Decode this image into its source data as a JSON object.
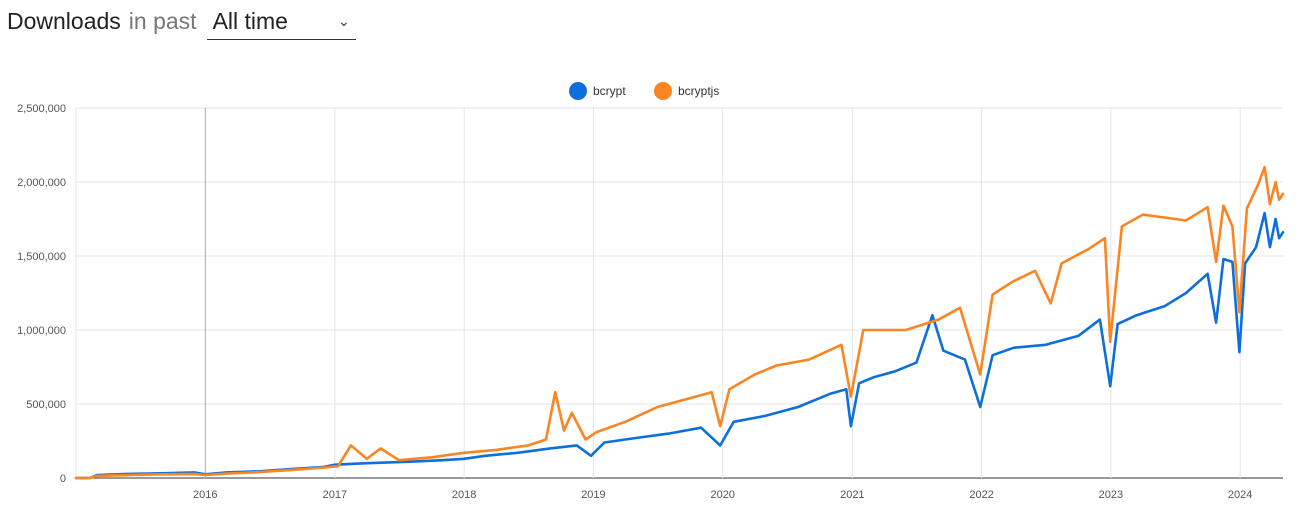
{
  "header": {
    "title": "Downloads",
    "subtitle": "in past",
    "period_selected": "All time"
  },
  "icons": {
    "period_dropdown": "chevron-down-icon"
  },
  "chart_data": {
    "type": "line",
    "title": "",
    "xlabel": "",
    "ylabel": "",
    "grid": true,
    "legend_position": "top-center",
    "x_ticks": [
      "2016",
      "2017",
      "2018",
      "2019",
      "2020",
      "2021",
      "2022",
      "2023",
      "2024"
    ],
    "y_ticks": [
      "0",
      "500,000",
      "1,000,000",
      "1,500,000",
      "2,000,000",
      "2,500,000"
    ],
    "xlim": [
      "2015-01-01",
      "2024-05-01"
    ],
    "ylim": [
      0,
      2500000
    ],
    "series": [
      {
        "name": "bcrypt",
        "color": "#0D6FDC",
        "points": [
          [
            "2015-01-01",
            0
          ],
          [
            "2015-02-10",
            0
          ],
          [
            "2015-03-01",
            20000
          ],
          [
            "2015-06-01",
            28000
          ],
          [
            "2015-09-01",
            32000
          ],
          [
            "2015-12-01",
            38000
          ],
          [
            "2016-01-01",
            25000
          ],
          [
            "2016-03-01",
            38000
          ],
          [
            "2016-06-01",
            45000
          ],
          [
            "2016-09-01",
            60000
          ],
          [
            "2016-12-01",
            75000
          ],
          [
            "2017-01-01",
            90000
          ],
          [
            "2017-04-01",
            100000
          ],
          [
            "2017-08-01",
            110000
          ],
          [
            "2017-11-01",
            120000
          ],
          [
            "2018-01-01",
            130000
          ],
          [
            "2018-03-01",
            150000
          ],
          [
            "2018-06-01",
            170000
          ],
          [
            "2018-09-01",
            200000
          ],
          [
            "2018-11-15",
            220000
          ],
          [
            "2018-12-25",
            150000
          ],
          [
            "2019-02-01",
            240000
          ],
          [
            "2019-05-01",
            270000
          ],
          [
            "2019-08-01",
            300000
          ],
          [
            "2019-11-01",
            340000
          ],
          [
            "2019-12-25",
            220000
          ],
          [
            "2020-02-01",
            380000
          ],
          [
            "2020-05-01",
            420000
          ],
          [
            "2020-08-01",
            480000
          ],
          [
            "2020-11-01",
            570000
          ],
          [
            "2020-12-15",
            600000
          ],
          [
            "2020-12-28",
            350000
          ],
          [
            "2021-01-20",
            640000
          ],
          [
            "2021-03-01",
            680000
          ],
          [
            "2021-05-01",
            720000
          ],
          [
            "2021-07-01",
            780000
          ],
          [
            "2021-08-15",
            1100000
          ],
          [
            "2021-09-15",
            860000
          ],
          [
            "2021-11-15",
            800000
          ],
          [
            "2021-12-28",
            480000
          ],
          [
            "2022-02-01",
            830000
          ],
          [
            "2022-04-01",
            880000
          ],
          [
            "2022-07-01",
            900000
          ],
          [
            "2022-10-01",
            960000
          ],
          [
            "2022-12-01",
            1070000
          ],
          [
            "2022-12-30",
            620000
          ],
          [
            "2023-01-20",
            1040000
          ],
          [
            "2023-03-15",
            1100000
          ],
          [
            "2023-06-01",
            1160000
          ],
          [
            "2023-08-01",
            1250000
          ],
          [
            "2023-10-01",
            1380000
          ],
          [
            "2023-10-25",
            1050000
          ],
          [
            "2023-11-15",
            1480000
          ],
          [
            "2023-12-10",
            1460000
          ],
          [
            "2023-12-30",
            850000
          ],
          [
            "2024-01-15",
            1450000
          ],
          [
            "2024-02-15",
            1560000
          ],
          [
            "2024-03-10",
            1790000
          ],
          [
            "2024-03-25",
            1560000
          ],
          [
            "2024-04-10",
            1750000
          ],
          [
            "2024-04-20",
            1620000
          ],
          [
            "2024-05-01",
            1660000
          ]
        ]
      },
      {
        "name": "bcryptjs",
        "color": "#FB8522",
        "points": [
          [
            "2015-01-01",
            0
          ],
          [
            "2015-02-10",
            0
          ],
          [
            "2015-03-01",
            15000
          ],
          [
            "2015-06-01",
            20000
          ],
          [
            "2015-09-01",
            25000
          ],
          [
            "2015-12-01",
            28000
          ],
          [
            "2016-01-01",
            20000
          ],
          [
            "2016-03-01",
            30000
          ],
          [
            "2016-06-01",
            40000
          ],
          [
            "2016-09-01",
            55000
          ],
          [
            "2016-12-01",
            70000
          ],
          [
            "2017-01-10",
            80000
          ],
          [
            "2017-02-15",
            220000
          ],
          [
            "2017-04-01",
            130000
          ],
          [
            "2017-05-10",
            200000
          ],
          [
            "2017-07-01",
            120000
          ],
          [
            "2017-10-01",
            140000
          ],
          [
            "2018-01-01",
            170000
          ],
          [
            "2018-04-01",
            190000
          ],
          [
            "2018-07-01",
            220000
          ],
          [
            "2018-08-20",
            260000
          ],
          [
            "2018-09-15",
            580000
          ],
          [
            "2018-10-10",
            320000
          ],
          [
            "2018-11-01",
            440000
          ],
          [
            "2018-12-10",
            260000
          ],
          [
            "2019-01-10",
            310000
          ],
          [
            "2019-04-01",
            380000
          ],
          [
            "2019-07-01",
            480000
          ],
          [
            "2019-10-01",
            540000
          ],
          [
            "2019-12-01",
            580000
          ],
          [
            "2019-12-25",
            350000
          ],
          [
            "2020-01-20",
            600000
          ],
          [
            "2020-04-01",
            700000
          ],
          [
            "2020-06-01",
            760000
          ],
          [
            "2020-09-01",
            800000
          ],
          [
            "2020-12-01",
            900000
          ],
          [
            "2020-12-28",
            550000
          ],
          [
            "2021-02-01",
            1000000
          ],
          [
            "2021-06-01",
            1000000
          ],
          [
            "2021-09-01",
            1070000
          ],
          [
            "2021-11-01",
            1150000
          ],
          [
            "2021-12-28",
            700000
          ],
          [
            "2022-02-01",
            1240000
          ],
          [
            "2022-04-01",
            1330000
          ],
          [
            "2022-06-01",
            1400000
          ],
          [
            "2022-07-15",
            1180000
          ],
          [
            "2022-08-15",
            1450000
          ],
          [
            "2022-11-01",
            1550000
          ],
          [
            "2022-12-15",
            1620000
          ],
          [
            "2022-12-30",
            920000
          ],
          [
            "2023-02-01",
            1700000
          ],
          [
            "2023-04-01",
            1780000
          ],
          [
            "2023-06-01",
            1760000
          ],
          [
            "2023-08-01",
            1740000
          ],
          [
            "2023-10-01",
            1830000
          ],
          [
            "2023-10-25",
            1460000
          ],
          [
            "2023-11-15",
            1840000
          ],
          [
            "2023-12-10",
            1700000
          ],
          [
            "2023-12-30",
            1120000
          ],
          [
            "2024-01-20",
            1820000
          ],
          [
            "2024-02-20",
            1980000
          ],
          [
            "2024-03-10",
            2100000
          ],
          [
            "2024-03-25",
            1850000
          ],
          [
            "2024-04-10",
            2000000
          ],
          [
            "2024-04-20",
            1880000
          ],
          [
            "2024-05-01",
            1920000
          ]
        ]
      }
    ]
  }
}
